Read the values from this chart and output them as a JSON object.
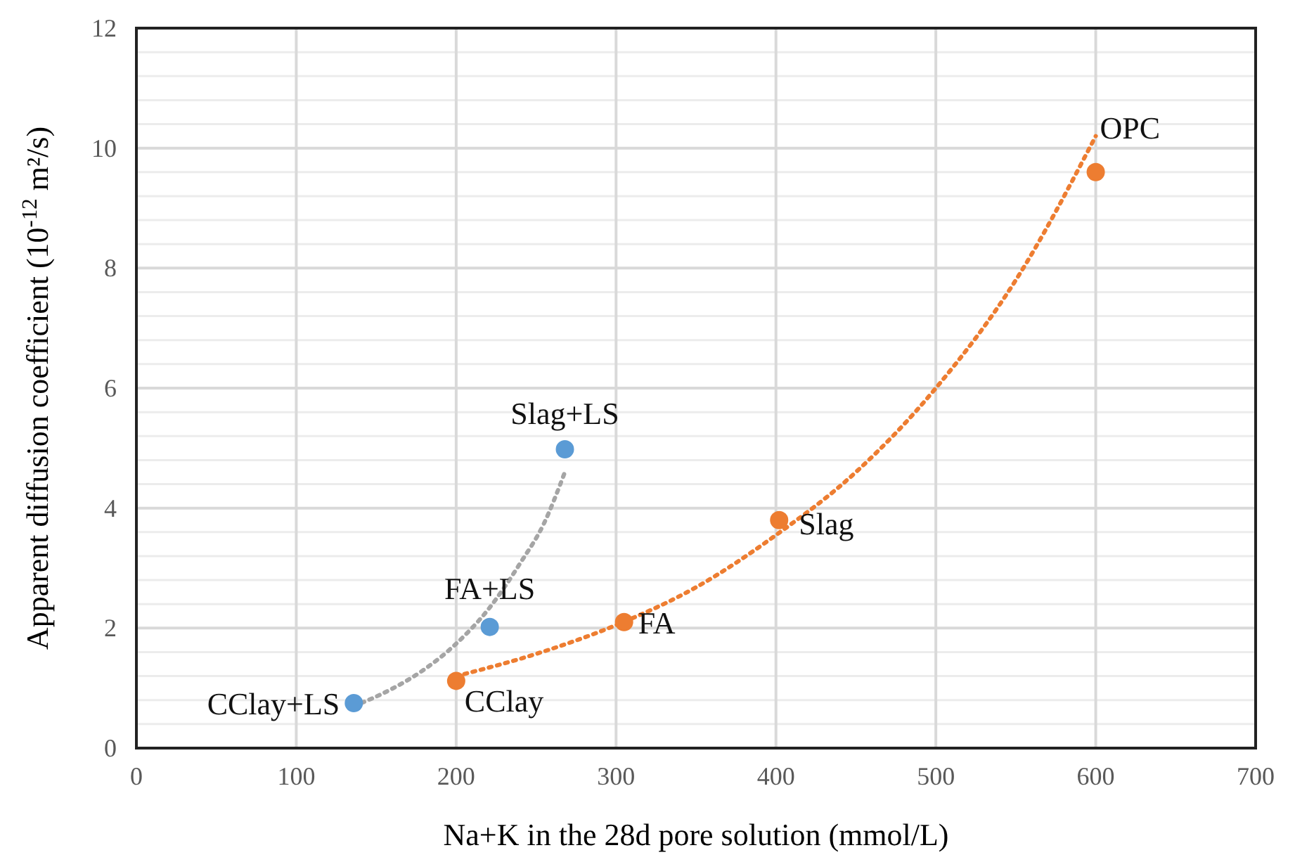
{
  "chart_data": {
    "type": "scatter",
    "xlabel": "Na+K in the 28d pore solution (mmol/L)",
    "ylabel": "Apparent diffusion coefficient (10$^{-12}$ m²/s)",
    "xlim": [
      0,
      700
    ],
    "xticks": [
      0,
      100,
      200,
      300,
      400,
      500,
      600,
      700
    ],
    "ylim": [
      0,
      12
    ],
    "yticks": [
      0,
      {
        "value": 0.4,
        "label": null
      },
      {
        "value": 0.8,
        "label": null
      },
      {
        "value": 1.2,
        "label": null
      },
      {
        "value": 1.6,
        "label": null
      },
      2,
      {
        "value": 2.4,
        "label": null
      },
      {
        "value": 2.8,
        "label": null
      },
      {
        "value": 3.2,
        "label": null
      },
      {
        "value": 3.6,
        "label": null
      },
      4,
      {
        "value": 4.4,
        "label": null
      },
      {
        "value": 4.8,
        "label": null
      },
      {
        "value": 5.2,
        "label": null
      },
      {
        "value": 5.6,
        "label": null
      },
      6,
      {
        "value": 6.4,
        "label": null
      },
      {
        "value": 6.8,
        "label": null
      },
      {
        "value": 7.2,
        "label": null
      },
      {
        "value": 7.6,
        "label": null
      },
      8,
      {
        "value": 8.4,
        "label": null
      },
      {
        "value": 8.8,
        "label": null
      },
      {
        "value": 9.2,
        "label": null
      },
      {
        "value": 9.6,
        "label": null
      },
      10,
      {
        "value": 10.4,
        "label": null
      },
      {
        "value": 10.8,
        "label": null
      },
      {
        "value": 11.2,
        "label": null
      },
      {
        "value": 11.6,
        "label": null
      },
      12
    ],
    "grid": true,
    "marker": "circle",
    "series": [
      {
        "color": "#ed7d31",
        "x": [
          200,
          305,
          402,
          600
        ],
        "values": [
          1.12,
          2.1,
          3.8,
          9.6
        ]
      },
      {
        "color": "#5b9bd5",
        "x": [
          136,
          221,
          268
        ],
        "values": [
          0.75,
          2.02,
          4.98
        ]
      },
      {
        "type": "line",
        "color": "#ed7d31",
        "line_style": "dotted",
        "marker": "none",
        "x": [
          200,
          250,
          300,
          350,
          400,
          450,
          500,
          550,
          600
        ],
        "values": [
          1.2,
          1.57,
          2.05,
          2.68,
          3.55,
          4.6,
          6.0,
          7.8,
          10.2
        ]
      },
      {
        "type": "line",
        "color": "#a5a5a5",
        "line_style": "dotted",
        "marker": "none",
        "x": [
          136,
          160,
          180,
          200,
          220,
          240,
          255,
          268
        ],
        "values": [
          0.7,
          0.99,
          1.31,
          1.74,
          2.31,
          3.08,
          3.75,
          4.6
        ]
      }
    ],
    "annotations": [
      {
        "text": "OPC",
        "x": 600,
        "y": 9.6
      },
      {
        "text": "Slag",
        "x": 402,
        "y": 3.8
      },
      {
        "text": "FA",
        "x": 305,
        "y": 2.1
      },
      {
        "text": "CClay",
        "x": 200,
        "y": 1.12
      },
      {
        "text": "Slag+LS",
        "x": 268,
        "y": 4.98
      },
      {
        "text": "FA+LS",
        "x": 221,
        "y": 2.02
      },
      {
        "text": "CClay+LS",
        "x": 136,
        "y": 0.75
      }
    ]
  }
}
